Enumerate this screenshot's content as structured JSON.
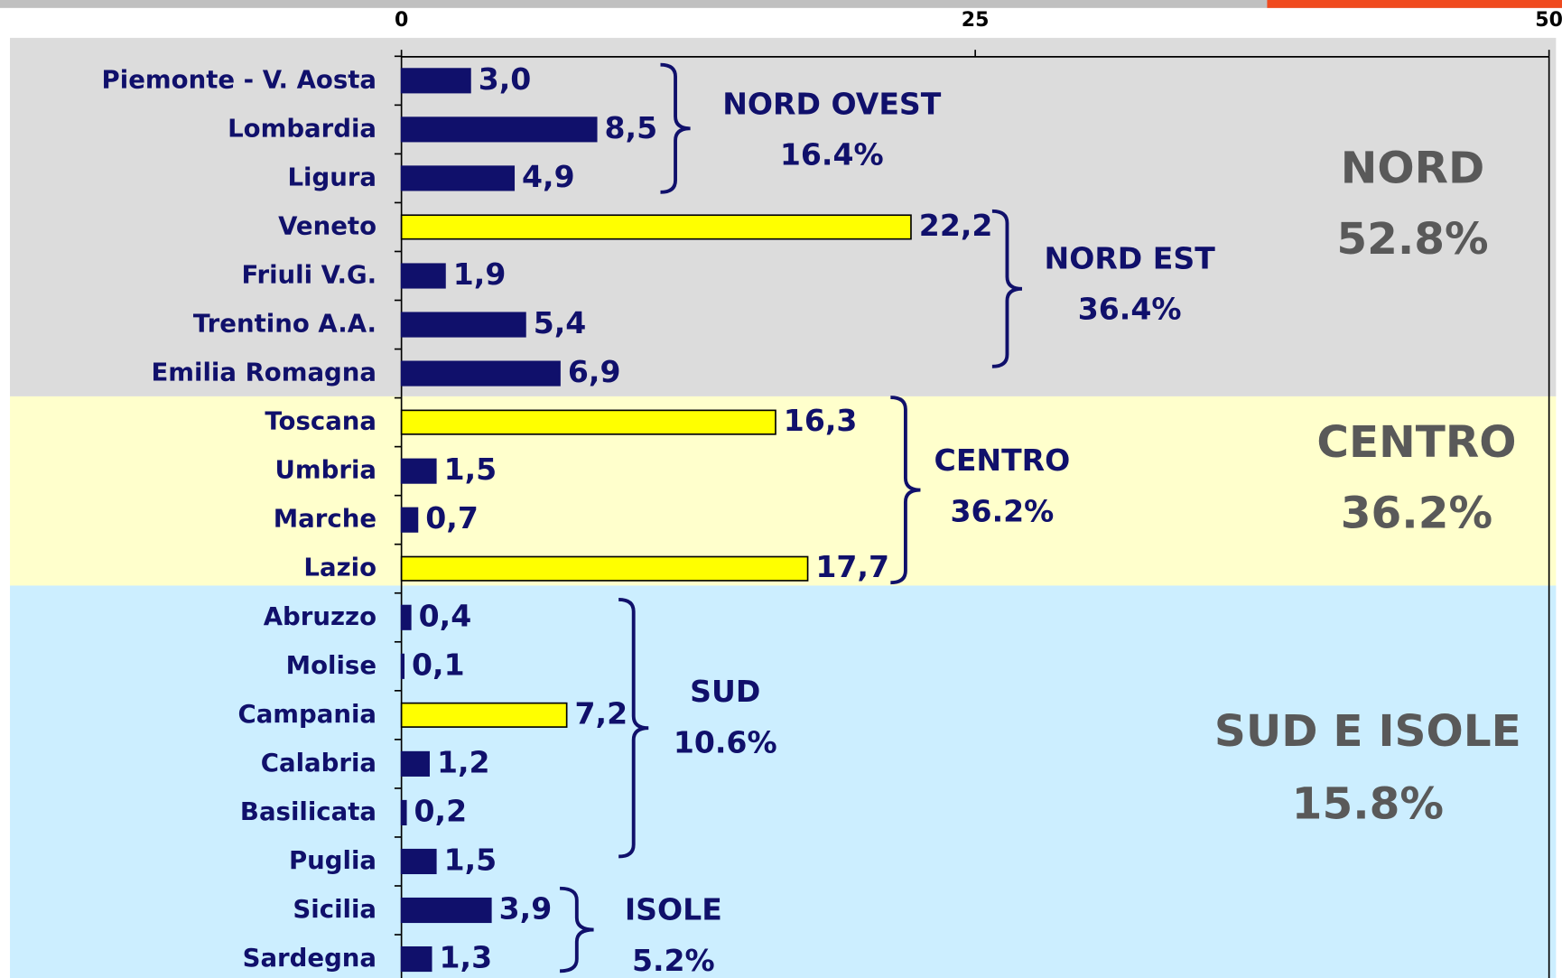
{
  "chart_data": {
    "type": "bar",
    "orientation": "horizontal",
    "categories": [
      "Piemonte - V. Aosta",
      "Lombardia",
      "Ligura",
      "Veneto",
      "Friuli V.G.",
      "Trentino A.A.",
      "Emilia Romagna",
      "Toscana",
      "Umbria",
      "Marche",
      "Lazio",
      "Abruzzo",
      "Molise",
      "Campania",
      "Calabria",
      "Basilicata",
      "Puglia",
      "Sicilia",
      "Sardegna"
    ],
    "values": [
      3.0,
      8.5,
      4.9,
      22.2,
      1.9,
      5.4,
      6.9,
      16.3,
      1.5,
      0.7,
      17.7,
      0.4,
      0.1,
      7.2,
      1.2,
      0.2,
      1.5,
      3.9,
      1.3
    ],
    "value_labels": [
      "3,0",
      "8,5",
      "4,9",
      "22,2",
      "1,9",
      "5,4",
      "6,9",
      "16,3",
      "1,5",
      "0,7",
      "17,7",
      "0,4",
      "0,1",
      "7,2",
      "1,2",
      "0,2",
      "1,5",
      "3,9",
      "1,3"
    ],
    "colors": [
      "#10106b",
      "#10106b",
      "#10106b",
      "#ffff00",
      "#10106b",
      "#10106b",
      "#10106b",
      "#ffff00",
      "#10106b",
      "#10106b",
      "#ffff00",
      "#10106b",
      "#10106b",
      "#ffff00",
      "#10106b",
      "#10106b",
      "#10106b",
      "#10106b",
      "#10106b"
    ],
    "xlim": [
      0,
      50
    ],
    "xticks": [
      0,
      25,
      50
    ],
    "annotations": [
      "NORD OVEST",
      "16.4%",
      "NORD EST",
      "36.4%",
      "CENTRO",
      "36.2%",
      "SUD",
      "10.6%",
      "ISOLE",
      "5.2%"
    ],
    "regions": [
      "NORD",
      "52.8%",
      "CENTRO",
      "36.2%",
      "SUD E ISOLE",
      "15.8%"
    ]
  }
}
